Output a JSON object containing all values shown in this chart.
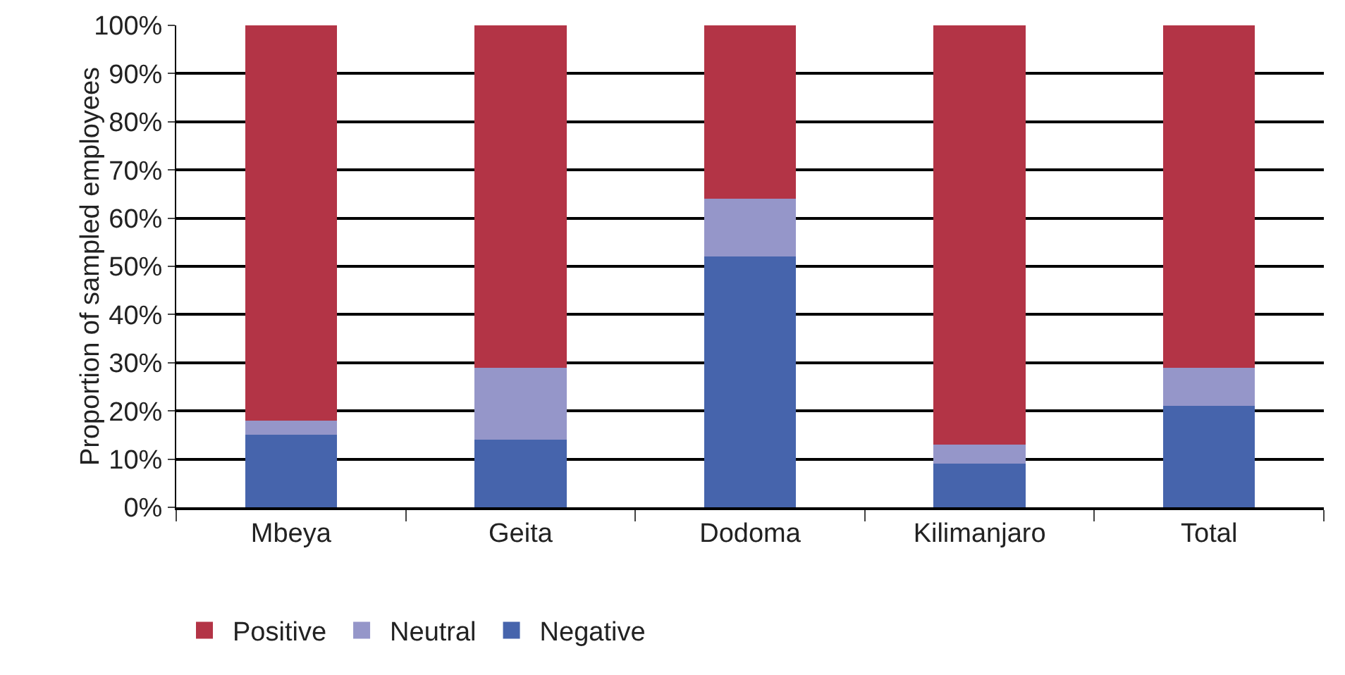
{
  "chart_data": {
    "type": "bar",
    "stacked": true,
    "ylabel": "Proportion of sampled employees",
    "categories": [
      "Mbeya",
      "Geita",
      "Dodoma",
      "Kilimanjaro",
      "Total"
    ],
    "series": [
      {
        "name": "Negative",
        "color": "#4664ac",
        "values": [
          15,
          14,
          52,
          9,
          21
        ]
      },
      {
        "name": "Neutral",
        "color": "#9596c9",
        "values": [
          3,
          15,
          12,
          4,
          8
        ]
      },
      {
        "name": "Positive",
        "color": "#b33446",
        "values": [
          82,
          71,
          36,
          87,
          71
        ]
      }
    ],
    "ylim": [
      0,
      100
    ],
    "yticks": [
      {
        "value": 0,
        "label": "0%"
      },
      {
        "value": 10,
        "label": "10%"
      },
      {
        "value": 20,
        "label": "20%"
      },
      {
        "value": 30,
        "label": "30%"
      },
      {
        "value": 40,
        "label": "40%"
      },
      {
        "value": 50,
        "label": "50%"
      },
      {
        "value": 60,
        "label": "60%"
      },
      {
        "value": 70,
        "label": "70%"
      },
      {
        "value": 80,
        "label": "80%"
      },
      {
        "value": 90,
        "label": "90%"
      },
      {
        "value": 100,
        "label": "100%"
      }
    ],
    "grid": "y",
    "legend": "bottom"
  }
}
